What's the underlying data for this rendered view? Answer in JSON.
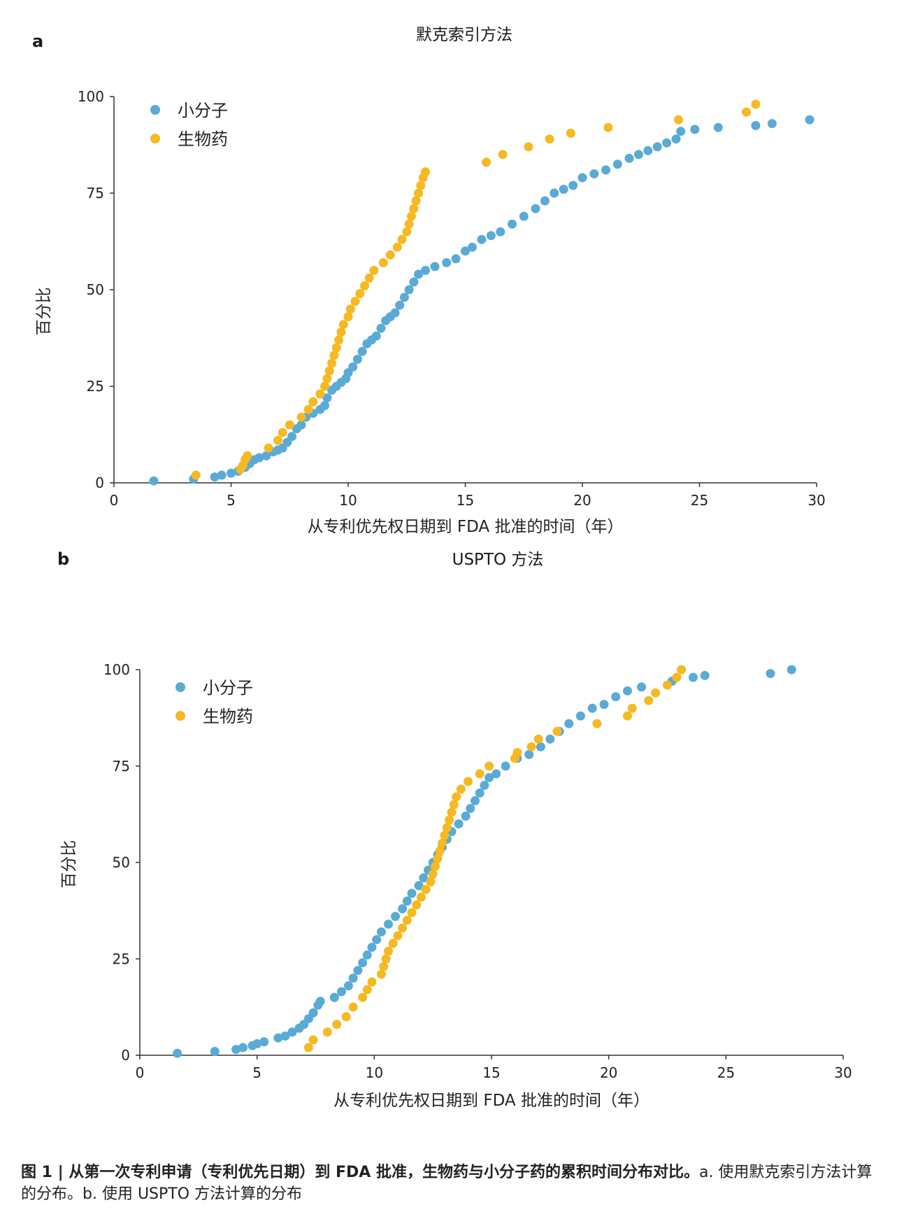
{
  "colors": {
    "small_molecule": "#5aaad6",
    "biologic": "#f6b921",
    "axis": "#333333"
  },
  "caption": {
    "bold": "图 1 | 从第一次专利申请（专利优先日期）到 FDA 批准，生物药与小分子药的累积时间分布对比。",
    "text": "a. 使用默克索引方法计算的分布。b. 使用 USPTO 方法计算的分布"
  },
  "chart_data": [
    {
      "panel_letter": "a",
      "title": "默克索引方法",
      "type": "scatter",
      "xlabel": "从专利优先权日期到 FDA 批准的时间（年）",
      "ylabel": "百分比",
      "xlim": [
        0,
        30
      ],
      "ylim": [
        0,
        100
      ],
      "xticks": [
        0,
        5,
        10,
        15,
        20,
        25,
        30
      ],
      "yticks": [
        0,
        25,
        50,
        75,
        100
      ],
      "grid": false,
      "legend": "top-left",
      "series": [
        {
          "name": "小分子",
          "color": "#5aaad6",
          "points": [
            [
              1.7,
              0.5
            ],
            [
              3.4,
              1
            ],
            [
              4.3,
              1.5
            ],
            [
              4.6,
              2
            ],
            [
              5.0,
              2.5
            ],
            [
              5.3,
              3
            ],
            [
              5.6,
              4
            ],
            [
              5.8,
              5
            ],
            [
              6.0,
              6
            ],
            [
              6.2,
              6.5
            ],
            [
              6.5,
              7
            ],
            [
              6.8,
              8
            ],
            [
              7.0,
              8.5
            ],
            [
              7.2,
              9
            ],
            [
              7.4,
              10.5
            ],
            [
              7.6,
              12
            ],
            [
              7.8,
              14
            ],
            [
              8.0,
              15
            ],
            [
              8.2,
              17
            ],
            [
              8.5,
              18
            ],
            [
              8.8,
              19
            ],
            [
              9.0,
              20
            ],
            [
              9.1,
              22
            ],
            [
              9.3,
              24
            ],
            [
              9.5,
              25
            ],
            [
              9.7,
              26
            ],
            [
              9.9,
              27
            ],
            [
              10.0,
              28.5
            ],
            [
              10.2,
              30
            ],
            [
              10.4,
              32
            ],
            [
              10.6,
              34
            ],
            [
              10.8,
              36
            ],
            [
              11.0,
              37
            ],
            [
              11.2,
              38
            ],
            [
              11.4,
              40
            ],
            [
              11.6,
              42
            ],
            [
              11.8,
              43
            ],
            [
              12.0,
              44
            ],
            [
              12.2,
              46
            ],
            [
              12.4,
              48
            ],
            [
              12.6,
              50
            ],
            [
              12.8,
              52
            ],
            [
              13.0,
              54
            ],
            [
              13.3,
              55
            ],
            [
              13.7,
              56
            ],
            [
              14.2,
              57
            ],
            [
              14.6,
              58
            ],
            [
              15.0,
              60
            ],
            [
              15.3,
              61
            ],
            [
              15.7,
              63
            ],
            [
              16.1,
              64
            ],
            [
              16.5,
              65
            ],
            [
              17.0,
              67
            ],
            [
              17.5,
              69
            ],
            [
              18.0,
              71
            ],
            [
              18.4,
              73
            ],
            [
              18.8,
              75
            ],
            [
              19.2,
              76
            ],
            [
              19.6,
              77
            ],
            [
              20.0,
              79
            ],
            [
              20.5,
              80
            ],
            [
              21.0,
              81
            ],
            [
              21.5,
              82.5
            ],
            [
              22.0,
              84
            ],
            [
              22.4,
              85
            ],
            [
              22.8,
              86
            ],
            [
              23.2,
              87
            ],
            [
              23.6,
              88
            ],
            [
              24.0,
              89
            ],
            [
              24.2,
              91
            ],
            [
              24.8,
              91.5
            ],
            [
              25.8,
              92
            ],
            [
              27.4,
              92.5
            ],
            [
              28.1,
              93
            ],
            [
              29.7,
              94
            ]
          ]
        },
        {
          "name": "生物药",
          "color": "#f6b921",
          "points": [
            [
              3.5,
              2
            ],
            [
              5.4,
              3.5
            ],
            [
              5.5,
              4.5
            ],
            [
              5.6,
              6
            ],
            [
              5.7,
              7
            ],
            [
              6.6,
              9
            ],
            [
              7.0,
              11
            ],
            [
              7.2,
              13
            ],
            [
              7.5,
              15
            ],
            [
              8.0,
              17
            ],
            [
              8.3,
              19
            ],
            [
              8.5,
              21
            ],
            [
              8.8,
              23
            ],
            [
              9.0,
              25
            ],
            [
              9.1,
              27
            ],
            [
              9.2,
              29
            ],
            [
              9.3,
              31
            ],
            [
              9.4,
              33
            ],
            [
              9.5,
              35
            ],
            [
              9.6,
              37
            ],
            [
              9.7,
              39
            ],
            [
              9.8,
              41
            ],
            [
              10.0,
              43
            ],
            [
              10.1,
              45
            ],
            [
              10.3,
              47
            ],
            [
              10.5,
              49
            ],
            [
              10.7,
              51
            ],
            [
              10.9,
              53
            ],
            [
              11.1,
              55
            ],
            [
              11.5,
              57
            ],
            [
              11.8,
              59
            ],
            [
              12.1,
              61
            ],
            [
              12.3,
              63
            ],
            [
              12.5,
              65
            ],
            [
              12.6,
              67
            ],
            [
              12.7,
              69
            ],
            [
              12.8,
              71
            ],
            [
              12.9,
              73
            ],
            [
              13.0,
              75
            ],
            [
              13.1,
              77
            ],
            [
              13.2,
              79
            ],
            [
              13.3,
              80.5
            ],
            [
              15.9,
              83
            ],
            [
              16.6,
              85
            ],
            [
              17.7,
              87
            ],
            [
              18.6,
              89
            ],
            [
              19.5,
              90.5
            ],
            [
              21.1,
              92
            ],
            [
              24.1,
              94
            ],
            [
              27.0,
              96
            ],
            [
              27.4,
              98
            ]
          ]
        }
      ]
    },
    {
      "panel_letter": "b",
      "title": "USPTO 方法",
      "type": "scatter",
      "xlabel": "从专利优先权日期到 FDA 批准的时间（年）",
      "ylabel": "百分比",
      "xlim": [
        0,
        30
      ],
      "ylim": [
        0,
        100
      ],
      "xticks": [
        0,
        5,
        10,
        15,
        20,
        25,
        30
      ],
      "yticks": [
        0,
        25,
        50,
        75,
        100
      ],
      "grid": false,
      "legend": "top-left",
      "series": [
        {
          "name": "小分子",
          "color": "#5aaad6",
          "points": [
            [
              1.6,
              0.5
            ],
            [
              3.2,
              1
            ],
            [
              4.1,
              1.5
            ],
            [
              4.4,
              2
            ],
            [
              4.8,
              2.5
            ],
            [
              5.0,
              3
            ],
            [
              5.3,
              3.5
            ],
            [
              5.9,
              4.5
            ],
            [
              6.2,
              5
            ],
            [
              6.5,
              6
            ],
            [
              6.8,
              7
            ],
            [
              7.0,
              8
            ],
            [
              7.2,
              9.5
            ],
            [
              7.4,
              11
            ],
            [
              7.6,
              13
            ],
            [
              7.7,
              14
            ],
            [
              8.3,
              15
            ],
            [
              8.6,
              16.5
            ],
            [
              8.9,
              18
            ],
            [
              9.1,
              20
            ],
            [
              9.3,
              22
            ],
            [
              9.5,
              24
            ],
            [
              9.7,
              26
            ],
            [
              9.9,
              28
            ],
            [
              10.1,
              30
            ],
            [
              10.3,
              32
            ],
            [
              10.6,
              34
            ],
            [
              10.9,
              36
            ],
            [
              11.2,
              38
            ],
            [
              11.4,
              40
            ],
            [
              11.6,
              42
            ],
            [
              11.9,
              44
            ],
            [
              12.1,
              46
            ],
            [
              12.3,
              48
            ],
            [
              12.5,
              50
            ],
            [
              12.7,
              52
            ],
            [
              12.9,
              54
            ],
            [
              13.1,
              56
            ],
            [
              13.3,
              58
            ],
            [
              13.6,
              60
            ],
            [
              13.9,
              62
            ],
            [
              14.1,
              64
            ],
            [
              14.3,
              66
            ],
            [
              14.5,
              68
            ],
            [
              14.7,
              70
            ],
            [
              14.9,
              72
            ],
            [
              15.2,
              73
            ],
            [
              15.6,
              75
            ],
            [
              16.1,
              77
            ],
            [
              16.6,
              78
            ],
            [
              17.1,
              80
            ],
            [
              17.5,
              82
            ],
            [
              17.9,
              84
            ],
            [
              18.3,
              86
            ],
            [
              18.8,
              88
            ],
            [
              19.3,
              90
            ],
            [
              19.8,
              91
            ],
            [
              20.3,
              93
            ],
            [
              20.8,
              94.5
            ],
            [
              21.4,
              95.5
            ],
            [
              22.7,
              97
            ],
            [
              23.6,
              98
            ],
            [
              24.1,
              98.5
            ],
            [
              26.9,
              99
            ],
            [
              27.8,
              100
            ]
          ]
        },
        {
          "name": "生物药",
          "color": "#f6b921",
          "points": [
            [
              7.2,
              2
            ],
            [
              7.4,
              4
            ],
            [
              8.0,
              6
            ],
            [
              8.4,
              8
            ],
            [
              8.8,
              10
            ],
            [
              9.1,
              12.5
            ],
            [
              9.5,
              15
            ],
            [
              9.7,
              17
            ],
            [
              9.9,
              19
            ],
            [
              10.3,
              21
            ],
            [
              10.4,
              23
            ],
            [
              10.5,
              25
            ],
            [
              10.6,
              27
            ],
            [
              10.8,
              29
            ],
            [
              11.0,
              31
            ],
            [
              11.2,
              33
            ],
            [
              11.4,
              35
            ],
            [
              11.6,
              37
            ],
            [
              11.8,
              39
            ],
            [
              12.0,
              41
            ],
            [
              12.2,
              43
            ],
            [
              12.4,
              45
            ],
            [
              12.5,
              47
            ],
            [
              12.6,
              49
            ],
            [
              12.7,
              51
            ],
            [
              12.8,
              53
            ],
            [
              12.9,
              55
            ],
            [
              13.0,
              57
            ],
            [
              13.1,
              59
            ],
            [
              13.2,
              61
            ],
            [
              13.3,
              63
            ],
            [
              13.4,
              65
            ],
            [
              13.5,
              67
            ],
            [
              13.7,
              69
            ],
            [
              14.0,
              71
            ],
            [
              14.5,
              73
            ],
            [
              14.9,
              75
            ],
            [
              16.0,
              77
            ],
            [
              16.1,
              78.5
            ],
            [
              16.7,
              80
            ],
            [
              17.0,
              82
            ],
            [
              17.8,
              84
            ],
            [
              19.5,
              86
            ],
            [
              20.8,
              88
            ],
            [
              21.0,
              90
            ],
            [
              21.7,
              92
            ],
            [
              22.0,
              94
            ],
            [
              22.5,
              96
            ],
            [
              22.9,
              98
            ],
            [
              23.1,
              100
            ]
          ]
        }
      ]
    }
  ]
}
